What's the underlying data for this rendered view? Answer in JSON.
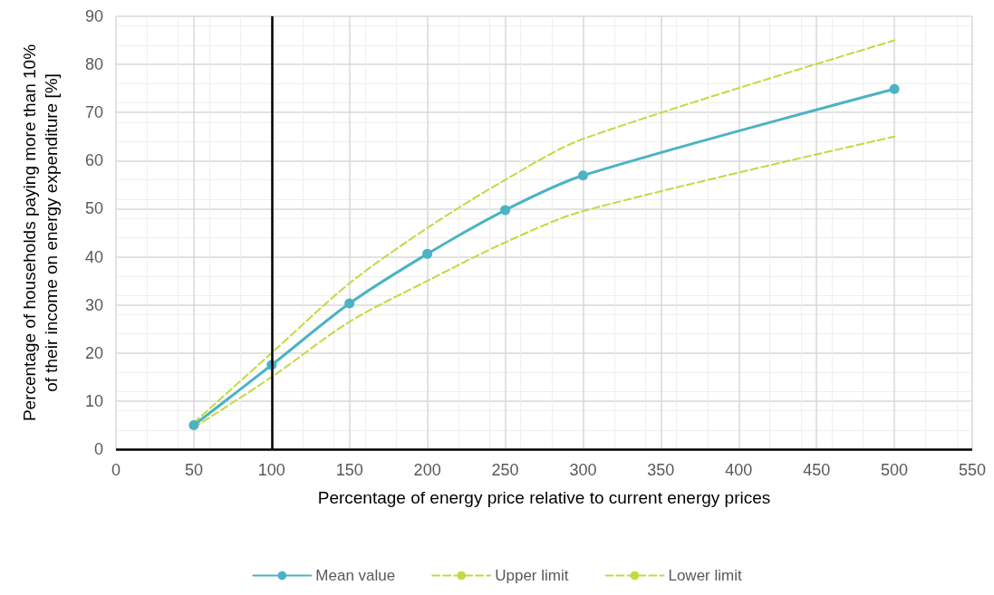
{
  "chart_data": {
    "type": "line",
    "xlabel": "Percentage of energy price relative to current energy prices",
    "ylabel": "Percentage of households paying more than 10%\nof their income on energy expenditure [%]",
    "x": [
      50,
      100,
      150,
      200,
      250,
      300,
      500
    ],
    "series": [
      {
        "name": "Mean value",
        "color": "#4bb3c3",
        "marker": "circle",
        "line_style": "solid",
        "values": [
          5,
          17.5,
          30.3,
          40.6,
          49.7,
          56.9,
          74.9
        ]
      },
      {
        "name": "Upper limit",
        "color": "#c5d840",
        "marker": "none",
        "line_style": "dashed",
        "values": [
          5.5,
          20,
          34.5,
          46,
          56,
          64.5,
          85
        ]
      },
      {
        "name": "Lower limit",
        "color": "#c5d840",
        "marker": "none",
        "line_style": "dashed",
        "values": [
          4.5,
          15,
          26.5,
          35,
          43,
          49.5,
          65
        ]
      }
    ],
    "xlim": [
      0,
      550
    ],
    "xticks": [
      0,
      50,
      100,
      150,
      200,
      250,
      300,
      350,
      400,
      450,
      500,
      550
    ],
    "ylim": [
      0,
      90
    ],
    "yticks": [
      0,
      10,
      20,
      30,
      40,
      50,
      60,
      70,
      80,
      90
    ],
    "ref_lines": [
      {
        "axis": "x",
        "value": 100,
        "color": "#000000",
        "line_style": "solid"
      }
    ],
    "grid": true,
    "legend": "bottom"
  }
}
